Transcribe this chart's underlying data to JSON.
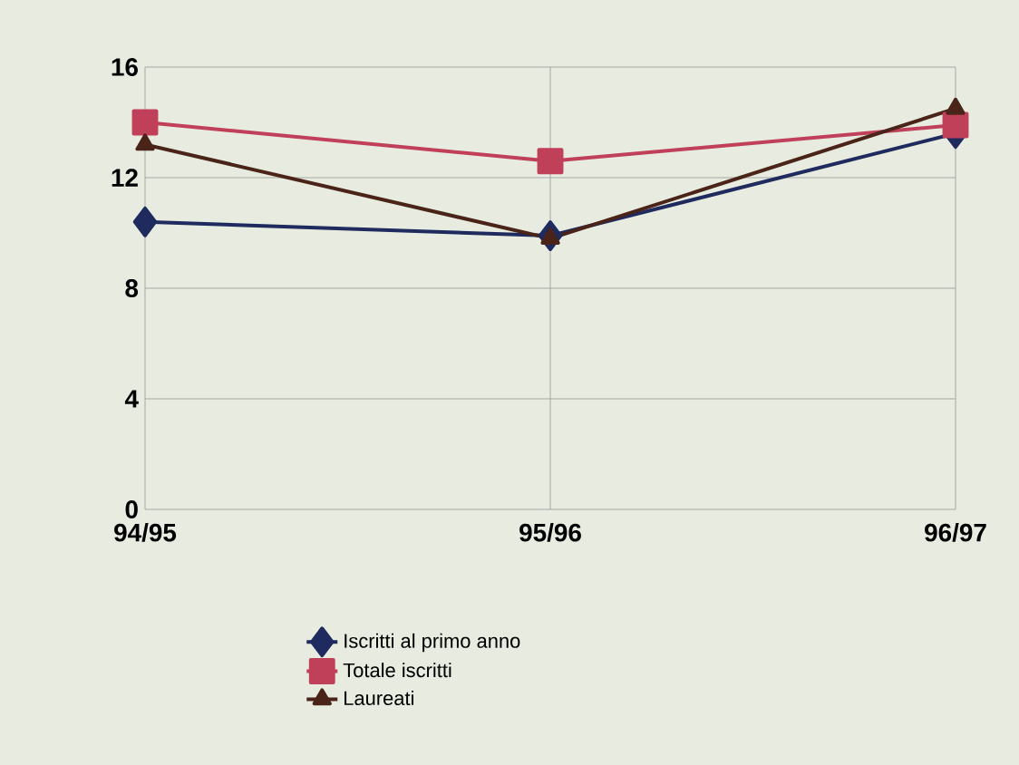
{
  "chart_data": {
    "type": "line",
    "categories": [
      "94/95",
      "95/96",
      "96/97"
    ],
    "series": [
      {
        "name": "Iscritti al primo anno",
        "color": "#1f2a5e",
        "marker": "diamond",
        "values": [
          10.4,
          9.9,
          13.6
        ]
      },
      {
        "name": "Totale iscritti",
        "color": "#c0405a",
        "marker": "square",
        "values": [
          14.0,
          12.6,
          13.9
        ]
      },
      {
        "name": "Laureati",
        "color": "#4a2418",
        "marker": "triangle",
        "values": [
          13.2,
          9.8,
          14.5
        ]
      }
    ],
    "ylim": [
      0,
      16
    ],
    "yticks": [
      0,
      4,
      8,
      12,
      16
    ],
    "grid": true,
    "legend": "bottom",
    "line_style": "solid"
  }
}
